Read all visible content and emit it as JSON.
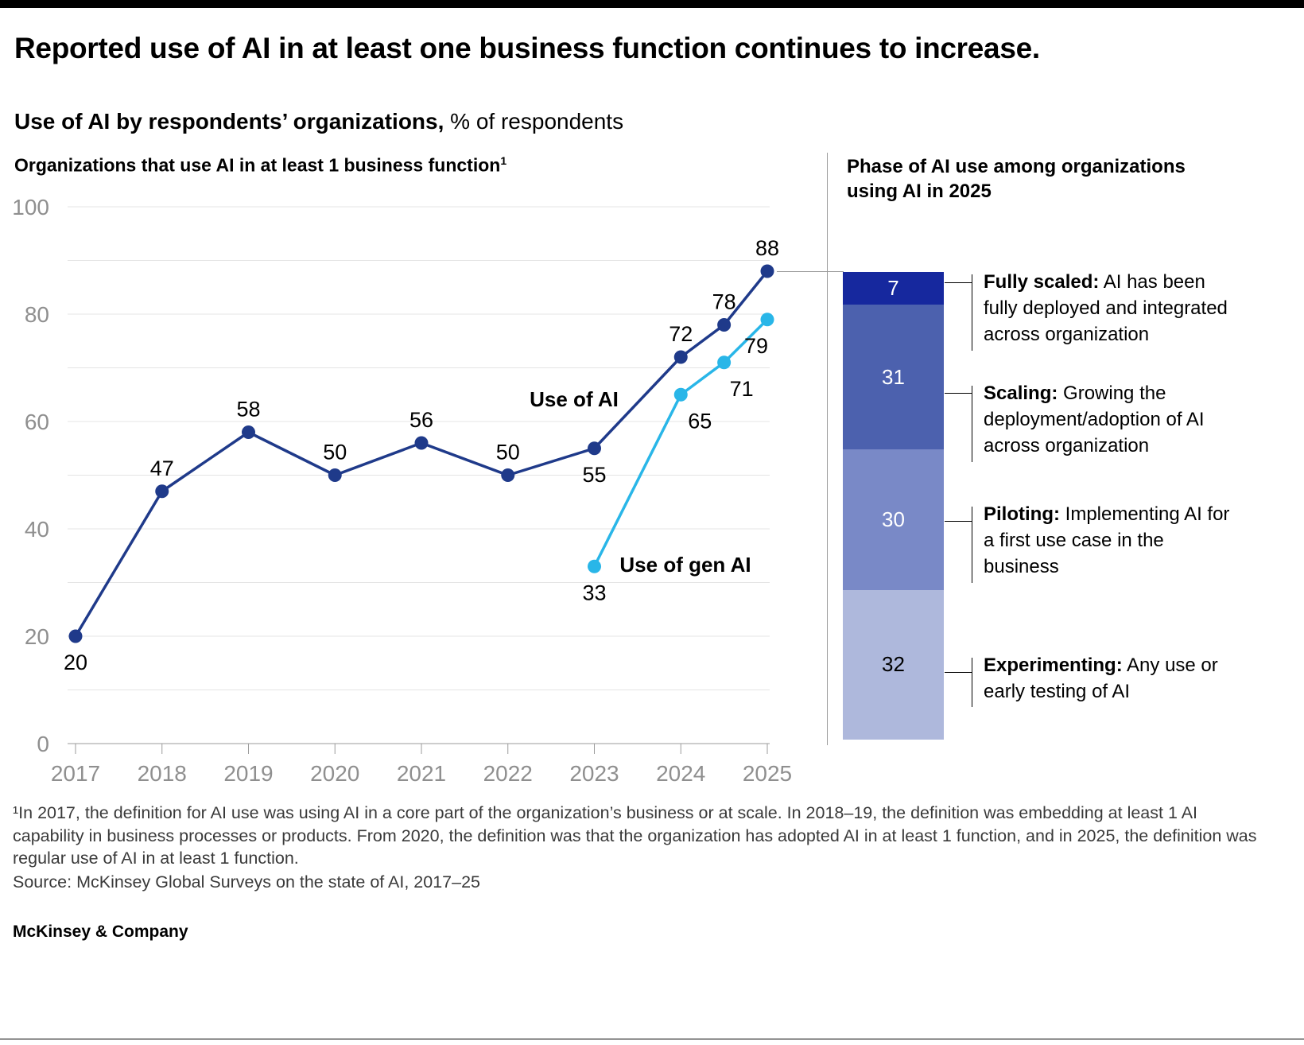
{
  "page": {
    "title": "Reported use of AI in at least one business function continues to increase.",
    "subtitle_bold": "Use of AI by respondents’ organizations,",
    "subtitle_regular": " % of respondents",
    "footnote": "¹In 2017, the definition for AI use was using AI in a core part of the organization’s business or at scale. In 2018–19, the definition was embedding at least 1 AI capability in business processes or products. From 2020, the definition was that the organization has adopted AI in at least 1 function, and in 2025, the definition was regular use of AI in at least 1 function.",
    "source": "Source: McKinsey Global Surveys on the state of AI, 2017–25",
    "brand": "McKinsey & Company"
  },
  "left_chart": {
    "header": "Organizations that use AI in at least 1 business function",
    "header_superscript": "1"
  },
  "right_chart": {
    "header": "Phase of AI use among organizations using AI in 2025"
  },
  "colors": {
    "accent_bar": "#000000",
    "axis_gray": "#8f8f8f",
    "gridline": "#e4e4e4",
    "baseline": "#9b9b9b",
    "use_of_ai": "#1f3a8a",
    "use_of_gen_ai": "#29b6e8"
  },
  "chart_data": [
    {
      "type": "line",
      "title": "Organizations that use AI in at least 1 business function",
      "ylabel": "% of respondents",
      "ylim": [
        0,
        100
      ],
      "ytick_labels": [
        0,
        20,
        40,
        60,
        80,
        100
      ],
      "grid": "horizontal every 10, on",
      "x_labels": [
        "2017",
        "2018",
        "2019",
        "2020",
        "2021",
        "2022",
        "2023",
        "2024",
        "2025"
      ],
      "series": [
        {
          "name": "Use of AI",
          "color": "#1f3a8a",
          "x": [
            2017,
            2018,
            2019,
            2020,
            2021,
            2022,
            2023,
            2024,
            2024.5,
            2025
          ],
          "values": [
            20,
            47,
            58,
            50,
            56,
            50,
            55,
            72,
            78,
            88
          ]
        },
        {
          "name": "Use of gen AI",
          "color": "#29b6e8",
          "x": [
            2023,
            2024,
            2024.5,
            2025
          ],
          "values": [
            33,
            65,
            71,
            79
          ]
        }
      ],
      "legend_position": "inline labels on lines"
    },
    {
      "type": "bar",
      "subtype": "single-stacked-vertical",
      "title": "Phase of AI use among organizations using AI in 2025",
      "total": 100,
      "segments": [
        {
          "label": "Fully scaled",
          "value": 7,
          "color": "#16289e",
          "description": "AI has been fully deployed and integrated across organization"
        },
        {
          "label": "Scaling",
          "value": 31,
          "color": "#4c61ae",
          "description": "Growing the deployment/adoption of AI across organization"
        },
        {
          "label": "Piloting",
          "value": 30,
          "color": "#7989c7",
          "description": "Implementing AI for a first use case in the business"
        },
        {
          "label": "Experimenting",
          "value": 32,
          "color": "#aeb8dc",
          "description": "Any use or early testing of AI"
        }
      ]
    }
  ]
}
